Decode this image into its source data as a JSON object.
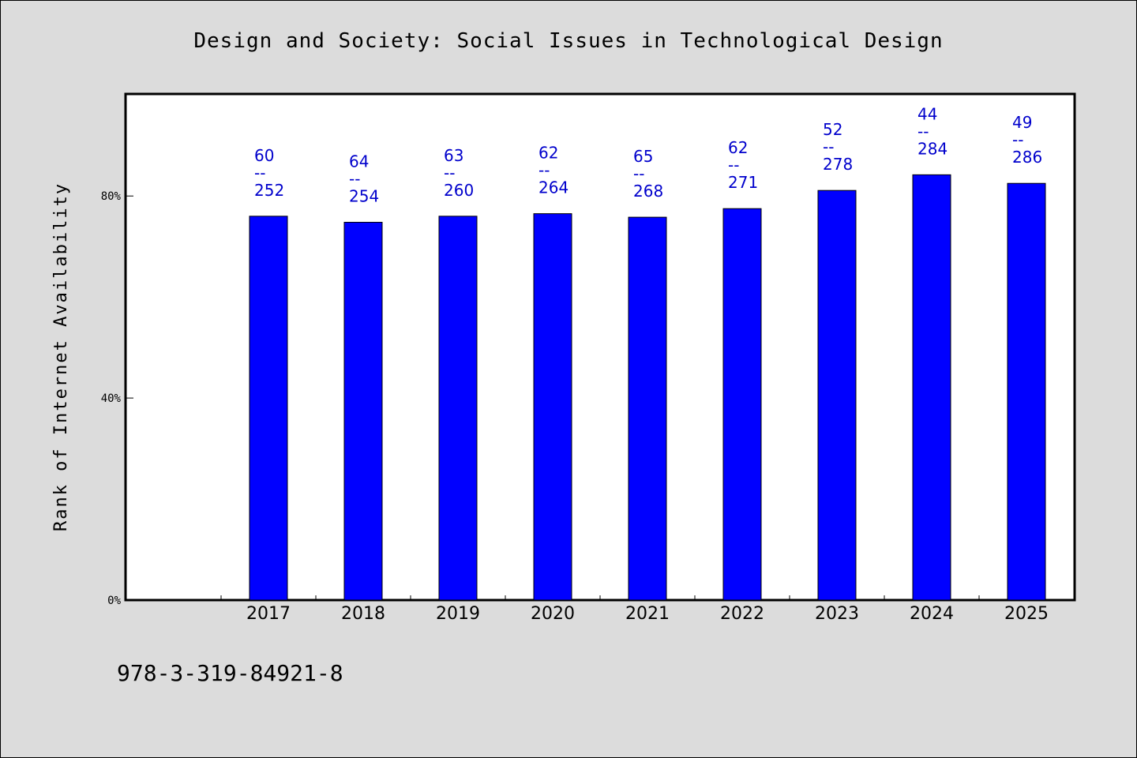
{
  "chart_data": {
    "type": "bar",
    "title": "Design and Society: Social Issues in Technological Design",
    "xlabel": "",
    "ylabel": "Rank of Internet Availability",
    "categories": [
      "2017",
      "2018",
      "2019",
      "2020",
      "2021",
      "2022",
      "2023",
      "2024",
      "2025"
    ],
    "values": [
      76.0,
      74.8,
      76.0,
      76.5,
      75.8,
      77.5,
      81.1,
      84.2,
      82.5
    ],
    "data_labels": [
      [
        "60",
        "--",
        "252"
      ],
      [
        "64",
        "--",
        "254"
      ],
      [
        "63",
        "--",
        "260"
      ],
      [
        "62",
        "--",
        "264"
      ],
      [
        "65",
        "--",
        "268"
      ],
      [
        "62",
        "--",
        "271"
      ],
      [
        "52",
        "--",
        "278"
      ],
      [
        "44",
        "--",
        "284"
      ],
      [
        "49",
        "--",
        "286"
      ]
    ],
    "yticks": [
      {
        "value": 0,
        "label": "0%"
      },
      {
        "value": 40,
        "label": "40%"
      },
      {
        "value": 80,
        "label": "80%"
      }
    ],
    "ylim": [
      0,
      100
    ],
    "grid": false,
    "bar_color": "#0000ff",
    "label_color": "#0000cc",
    "plot_background": "#ffffff",
    "page_background": "#dcdcdc"
  },
  "footnote": "978-3-319-84921-8"
}
